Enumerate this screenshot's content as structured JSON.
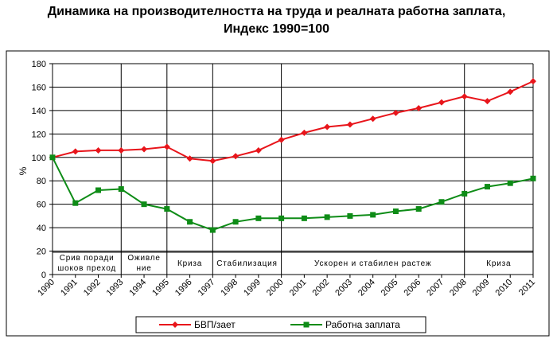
{
  "chart_data": {
    "type": "line",
    "title_lines": [
      "Динамика на производителността на труда и реалната работна заплата,",
      "Индекс 1990=100"
    ],
    "xlabel": "",
    "ylabel": "%",
    "ylim": [
      0,
      180
    ],
    "yticks": [
      0,
      20,
      40,
      60,
      80,
      100,
      120,
      140,
      160,
      180
    ],
    "x": [
      "1990",
      "1991",
      "1992",
      "1993",
      "1994",
      "1995",
      "1996",
      "1997",
      "1998",
      "1999",
      "2000",
      "2001",
      "2002",
      "2003",
      "2004",
      "2005",
      "2006",
      "2007",
      "2008",
      "2009",
      "2010",
      "2011"
    ],
    "series": [
      {
        "name": "БВП/зает",
        "color": "#e8151b",
        "values": [
          100,
          105,
          106,
          106,
          107,
          109,
          99,
          97,
          101,
          106,
          115,
          121,
          126,
          128,
          133,
          138,
          142,
          147,
          152,
          148,
          156,
          165
        ]
      },
      {
        "name": "Работна заплата",
        "color": "#0e8c17",
        "values": [
          100,
          61,
          72,
          73,
          60,
          56,
          45,
          38,
          45,
          48,
          48,
          48,
          49,
          50,
          51,
          54,
          56,
          62,
          69,
          75,
          78,
          82
        ]
      }
    ],
    "periods": [
      {
        "label_lines": [
          "Срив поради",
          "шоков преход"
        ],
        "from": "1990",
        "to": "1993"
      },
      {
        "label_lines": [
          "Оживле",
          "ние"
        ],
        "from": "1993",
        "to": "1995"
      },
      {
        "label_lines": [
          "Криза"
        ],
        "from": "1995",
        "to": "1997"
      },
      {
        "label_lines": [
          "Стабилизация"
        ],
        "from": "1997",
        "to": "2000"
      },
      {
        "label_lines": [
          "Ускорен и стабилен растеж"
        ],
        "from": "2000",
        "to": "2008"
      },
      {
        "label_lines": [
          "Криза"
        ],
        "from": "2008",
        "to": "2011"
      }
    ],
    "grid": true,
    "legend": "bottom"
  }
}
